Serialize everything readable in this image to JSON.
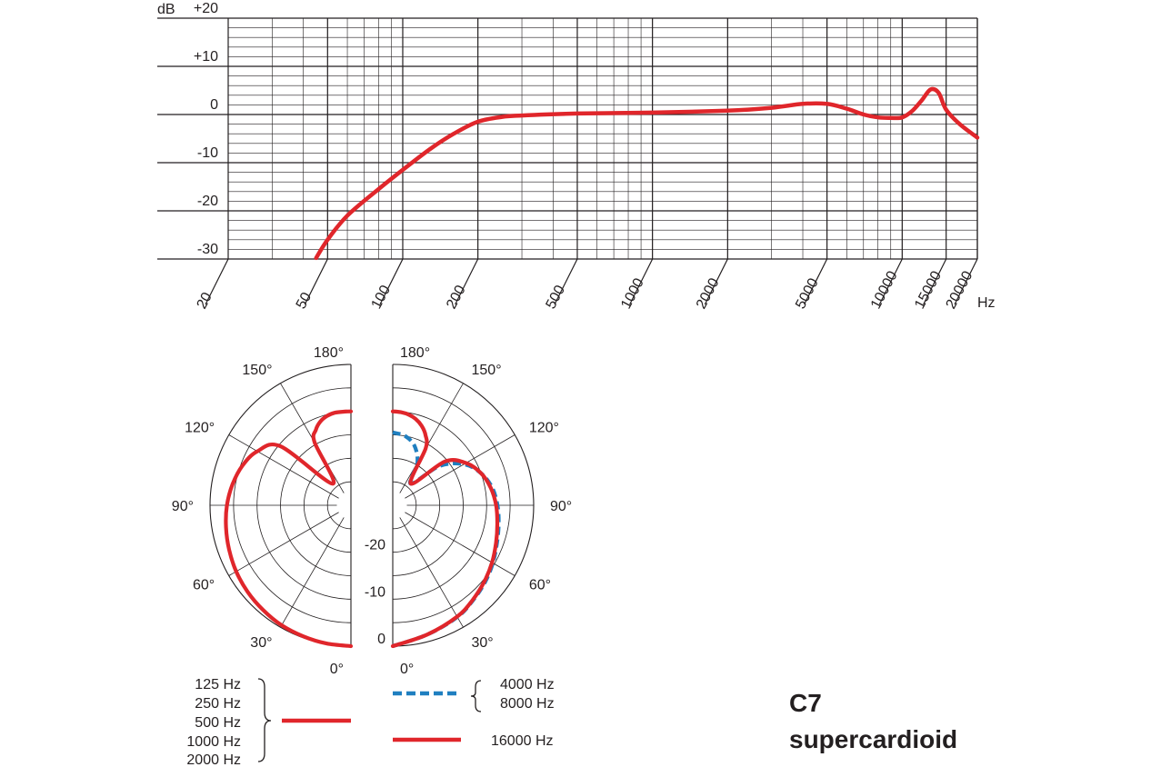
{
  "chart_data": [
    {
      "type": "line",
      "x_scale": "log",
      "xlim": [
        20,
        20000
      ],
      "ylim": [
        -30,
        20
      ],
      "y_unit": "dB",
      "x_unit": "Hz",
      "y_ticks": [
        {
          "value": 20,
          "label": "+20"
        },
        {
          "value": 10,
          "label": "+10"
        },
        {
          "value": 0,
          "label": "0"
        },
        {
          "value": -10,
          "label": "-10"
        },
        {
          "value": -20,
          "label": "-20"
        },
        {
          "value": -30,
          "label": "-30"
        }
      ],
      "x_ticks": [
        {
          "value": 20,
          "label": "20"
        },
        {
          "value": 50,
          "label": "50"
        },
        {
          "value": 100,
          "label": "100"
        },
        {
          "value": 200,
          "label": "200"
        },
        {
          "value": 500,
          "label": "500"
        },
        {
          "value": 1000,
          "label": "1000"
        },
        {
          "value": 2000,
          "label": "2000"
        },
        {
          "value": 5000,
          "label": "5000"
        },
        {
          "value": 10000,
          "label": "10000"
        },
        {
          "value": 15000,
          "label": "15000"
        },
        {
          "value": 20000,
          "label": "20000"
        }
      ],
      "grid": true,
      "color": "#e0262b",
      "series": [
        {
          "x": [
            45,
            50,
            60,
            80,
            100,
            130,
            160,
            200,
            250,
            300,
            500,
            1000,
            2000,
            3000,
            4000,
            5000,
            6000,
            7000,
            8000,
            9000,
            10000,
            11000,
            12000,
            13000,
            14000,
            15000,
            17000,
            20000
          ],
          "y": [
            -29.8,
            -26,
            -21,
            -15.5,
            -11.5,
            -7,
            -4,
            -1.5,
            -0.5,
            -0.2,
            0.2,
            0.4,
            0.8,
            1.4,
            2.2,
            2.2,
            1.2,
            0,
            -0.6,
            -0.7,
            -0.6,
            0.8,
            3.0,
            5.2,
            4.5,
            1.0,
            -2.0,
            -4.8
          ]
        }
      ]
    },
    {
      "type": "polar",
      "rings_db": [
        0,
        -5,
        -10,
        -15,
        -20,
        -25
      ],
      "ring_labels": [
        "0",
        "-10",
        "-20"
      ],
      "angle_labels": [
        "0°",
        "30°",
        "60°",
        "90°",
        "120°",
        "150°",
        "180°"
      ],
      "series": [
        {
          "side": "left",
          "style": "solid",
          "color": "#e0262b",
          "angles": [
            0,
            10,
            20,
            30,
            40,
            50,
            60,
            70,
            80,
            90,
            100,
            110,
            120,
            130,
            140,
            150,
            155,
            160,
            165,
            170,
            175,
            180
          ],
          "db": [
            0,
            -0.1,
            -0.3,
            -0.5,
            -0.9,
            -1.3,
            -1.8,
            -2.4,
            -3.0,
            -3.6,
            -4.4,
            -5.4,
            -7.0,
            -10.5,
            -24,
            -14.5,
            -12.3,
            -11.0,
            -10.3,
            -10.0,
            -10.0,
            -10.0
          ]
        },
        {
          "side": "right",
          "style": "dashed",
          "color": "#1f7fc0",
          "angles": [
            0,
            15,
            30,
            40,
            50,
            60,
            70,
            80,
            90,
            100,
            110,
            120,
            130,
            140,
            150,
            160,
            170,
            180
          ],
          "db": [
            0,
            -1.5,
            -2.5,
            -3.5,
            -4.4,
            -5.4,
            -6.4,
            -7.1,
            -7.7,
            -8.5,
            -10.0,
            -12.5,
            -17,
            -24,
            -19.5,
            -16.5,
            -15.0,
            -14.5
          ]
        },
        {
          "side": "right",
          "style": "solid",
          "color": "#e0262b",
          "angles": [
            0,
            15,
            30,
            40,
            50,
            60,
            70,
            80,
            90,
            100,
            110,
            120,
            130,
            140,
            150,
            155,
            160,
            165,
            170,
            175,
            180
          ],
          "db": [
            0,
            -1.5,
            -2.6,
            -3.6,
            -4.6,
            -5.6,
            -6.6,
            -7.4,
            -8.0,
            -8.8,
            -10.0,
            -12.0,
            -15.5,
            -24,
            -16.0,
            -13.5,
            -12.0,
            -11.0,
            -10.4,
            -10.1,
            -10.0
          ]
        }
      ]
    }
  ],
  "legend": {
    "group1": [
      "125 Hz",
      "250 Hz",
      "500 Hz",
      "1000 Hz",
      "2000 Hz"
    ],
    "group2": [
      "4000 Hz",
      "8000 Hz"
    ],
    "group3": "16000 Hz"
  },
  "model": {
    "name": "C7",
    "pattern": "supercardioid"
  },
  "colors": {
    "red": "#e0262b",
    "blue": "#1f7fc0",
    "ink": "#231f20"
  }
}
